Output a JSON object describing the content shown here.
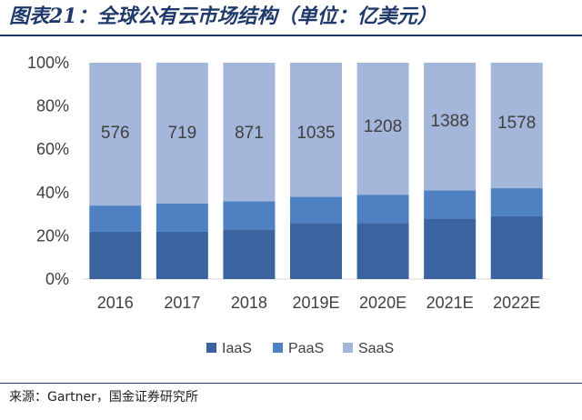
{
  "header": {
    "title": "图表21：全球公有云市场结构（单位：亿美元）"
  },
  "footer": {
    "source": "来源：Gartner，国金证券研究所"
  },
  "colors": {
    "IaaS": "#3a63a0",
    "PaaS": "#4f81c2",
    "SaaS": "#a4b6d9",
    "rule": "#1f3a6a"
  },
  "chart_data": {
    "type": "bar",
    "stacked": "percent",
    "categories": [
      "2016",
      "2017",
      "2018",
      "2019E",
      "2020E",
      "2021E",
      "2022E"
    ],
    "series": [
      {
        "name": "IaaS",
        "values": [
          22,
          22,
          23,
          26,
          26,
          28,
          29
        ]
      },
      {
        "name": "PaaS",
        "values": [
          12,
          13,
          13,
          12,
          13,
          13,
          13
        ]
      },
      {
        "name": "SaaS",
        "values": [
          66,
          65,
          64,
          62,
          61,
          59,
          58
        ]
      }
    ],
    "totals": [
      "576",
      "719",
      "871",
      "1035",
      "1208",
      "1388",
      "1578"
    ],
    "ylim": [
      0,
      100
    ],
    "yticks": [
      "0%",
      "20%",
      "40%",
      "60%",
      "80%",
      "100%"
    ],
    "legend": "bottom",
    "grid": false
  }
}
